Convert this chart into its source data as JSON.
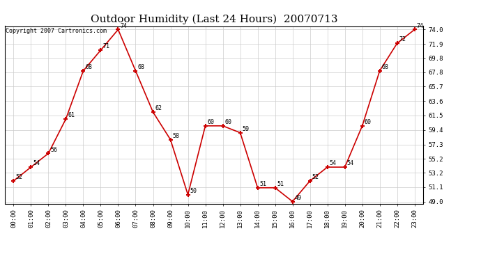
{
  "title": "Outdoor Humidity (Last 24 Hours)  20070713",
  "copyright_text": "Copyright 2007 Cartronics.com",
  "hours": [
    0,
    1,
    2,
    3,
    4,
    5,
    6,
    7,
    8,
    9,
    10,
    11,
    12,
    13,
    14,
    15,
    16,
    17,
    18,
    19,
    20,
    21,
    22,
    23
  ],
  "hour_labels": [
    "00:00",
    "01:00",
    "02:00",
    "03:00",
    "04:00",
    "05:00",
    "06:00",
    "07:00",
    "08:00",
    "09:00",
    "10:00",
    "11:00",
    "12:00",
    "13:00",
    "14:00",
    "15:00",
    "16:00",
    "17:00",
    "18:00",
    "19:00",
    "20:00",
    "21:00",
    "22:00",
    "23:00"
  ],
  "values": [
    52,
    54,
    56,
    61,
    68,
    71,
    74,
    68,
    62,
    58,
    50,
    60,
    60,
    59,
    51,
    51,
    49,
    52,
    54,
    54,
    60,
    68,
    72,
    74
  ],
  "line_color": "#cc0000",
  "marker_color": "#cc0000",
  "bg_color": "#ffffff",
  "grid_color": "#cccccc",
  "ylim_min": 49.0,
  "ylim_max": 74.0,
  "yticks": [
    49.0,
    51.1,
    53.2,
    55.2,
    57.3,
    59.4,
    61.5,
    63.6,
    65.7,
    67.8,
    69.8,
    71.9,
    74.0
  ],
  "title_fontsize": 11,
  "label_fontsize": 6,
  "tick_fontsize": 6.5,
  "copyright_fontsize": 6
}
